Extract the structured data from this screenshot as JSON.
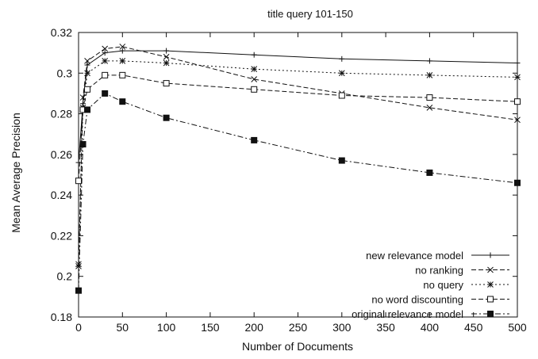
{
  "chart_data": {
    "type": "line",
    "title": "title query 101-150",
    "xlabel": "Number of Documents",
    "ylabel": "Mean Average Precision",
    "xlim": [
      0,
      500
    ],
    "ylim": [
      0.18,
      0.32
    ],
    "x_ticks": [
      "0",
      "50",
      "100",
      "150",
      "200",
      "250",
      "300",
      "350",
      "400",
      "450",
      "500"
    ],
    "y_ticks": [
      "0.18",
      "0.2",
      "0.22",
      "0.24",
      "0.26",
      "0.28",
      "0.3",
      "0.32"
    ],
    "grid": false,
    "legend_position": "bottom-right",
    "series": [
      {
        "name": "new relevance model",
        "marker": "plus",
        "dash": "solid",
        "x": [
          0,
          5,
          10,
          30,
          50,
          100,
          200,
          300,
          400,
          500
        ],
        "y": [
          0.256,
          0.285,
          0.304,
          0.31,
          0.311,
          0.311,
          0.309,
          0.307,
          0.306,
          0.305
        ]
      },
      {
        "name": "no ranking",
        "marker": "x",
        "dash": "dash",
        "x": [
          0,
          5,
          10,
          30,
          50,
          100,
          200,
          300,
          400,
          500
        ],
        "y": [
          0.206,
          0.288,
          0.306,
          0.312,
          0.313,
          0.308,
          0.297,
          0.29,
          0.283,
          0.277
        ]
      },
      {
        "name": "no query",
        "marker": "star",
        "dash": "dot",
        "x": [
          0,
          5,
          10,
          30,
          50,
          100,
          200,
          300,
          400,
          500
        ],
        "y": [
          0.205,
          0.283,
          0.3,
          0.306,
          0.306,
          0.305,
          0.302,
          0.3,
          0.299,
          0.298
        ]
      },
      {
        "name": "no word discounting",
        "marker": "square-open",
        "dash": "dash",
        "x": [
          0,
          5,
          10,
          30,
          50,
          100,
          200,
          300,
          400,
          500
        ],
        "y": [
          0.247,
          0.282,
          0.292,
          0.299,
          0.299,
          0.295,
          0.292,
          0.289,
          0.288,
          0.286
        ]
      },
      {
        "name": "original relevance model",
        "marker": "square-filled",
        "dash": "dashdot",
        "x": [
          0,
          5,
          10,
          30,
          50,
          100,
          200,
          300,
          400,
          500
        ],
        "y": [
          0.193,
          0.265,
          0.282,
          0.29,
          0.286,
          0.278,
          0.267,
          0.257,
          0.251,
          0.246
        ]
      }
    ]
  }
}
